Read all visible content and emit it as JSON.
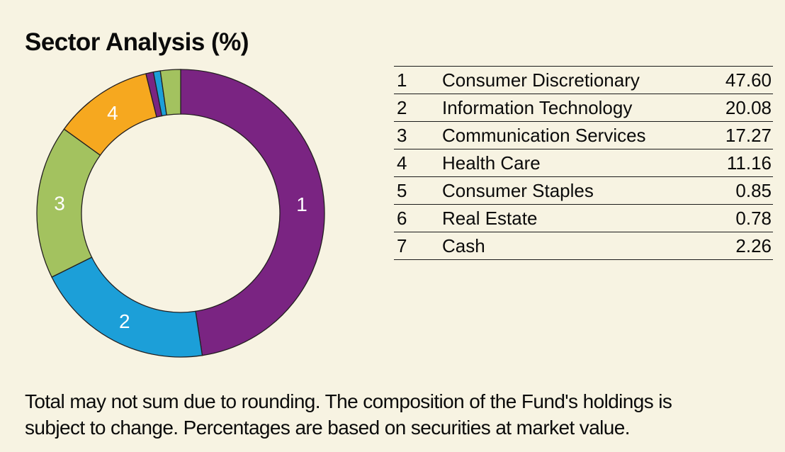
{
  "title": "Sector Analysis (%)",
  "chart_data": {
    "type": "pie",
    "subtype": "donut",
    "title": "Sector Analysis (%)",
    "categories": [
      "Consumer Discretionary",
      "Information Technology",
      "Communication Services",
      "Health Care",
      "Consumer Staples",
      "Real Estate",
      "Cash"
    ],
    "values": [
      47.6,
      20.08,
      17.27,
      11.16,
      0.85,
      0.78,
      2.26
    ],
    "slice_labels": [
      "1",
      "2",
      "3",
      "4",
      "5",
      "6",
      "7"
    ],
    "colors": [
      "#7A2482",
      "#1C9FD8",
      "#A3C25F",
      "#F6A81F",
      "#7A2482",
      "#1C9FD8",
      "#A3C25F"
    ],
    "start_angle_deg": 0,
    "direction": "clockwise",
    "inner_radius_ratio": 0.69,
    "stroke_color": "#231F20",
    "label_color": "#FFFFFF",
    "label_min_pct": 3,
    "legend_position": "right-table",
    "grid": false
  },
  "legend_table": {
    "rows": [
      {
        "index": "1",
        "sector": "Consumer Discretionary",
        "value": "47.60"
      },
      {
        "index": "2",
        "sector": "Information Technology",
        "value": "20.08"
      },
      {
        "index": "3",
        "sector": "Communication Services",
        "value": "17.27"
      },
      {
        "index": "4",
        "sector": "Health Care",
        "value": "11.16"
      },
      {
        "index": "5",
        "sector": "Consumer Staples",
        "value": "0.85"
      },
      {
        "index": "6",
        "sector": "Real Estate",
        "value": "0.78"
      },
      {
        "index": "7",
        "sector": "Cash",
        "value": "2.26"
      }
    ]
  },
  "footnote": {
    "lines": [
      "Total may not sum due to rounding. The composition of the Fund's holdings is",
      "subject to change. Percentages are based on securities at market value."
    ]
  },
  "colors": {
    "background": "#F7F3E2",
    "text": "#0B0B0B",
    "rule": "#1A1A1A"
  }
}
